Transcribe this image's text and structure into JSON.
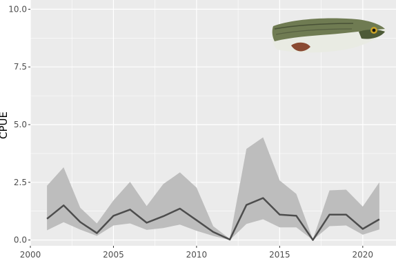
{
  "chart_data": {
    "type": "line",
    "title": "",
    "xlabel": "",
    "ylabel": "CPUE",
    "xlim": [
      2000,
      2022
    ],
    "ylim": [
      -0.25,
      10.4
    ],
    "x_ticks": [
      2000,
      2005,
      2010,
      2015,
      2020
    ],
    "y_ticks": [
      0.0,
      2.5,
      5.0,
      7.5,
      10.0
    ],
    "x_tick_labels": [
      "2000",
      "2005",
      "2010",
      "2015",
      "2020"
    ],
    "y_tick_labels": [
      "0.0",
      "2.5",
      "5.0",
      "7.5",
      "10.0"
    ],
    "grid": true,
    "legend": "none",
    "x": [
      2001,
      2002,
      2003,
      2004,
      2005,
      2006,
      2007,
      2008,
      2009,
      2010,
      2011,
      2012,
      2013,
      2014,
      2015,
      2016,
      2017,
      2018,
      2019,
      2020,
      2021
    ],
    "series": [
      {
        "values": [
          0.92,
          1.5,
          0.78,
          0.3,
          1.05,
          1.32,
          0.75,
          1.03,
          1.36,
          0.86,
          0.35,
          0.02,
          1.52,
          1.82,
          1.1,
          1.05,
          0.0,
          1.1,
          1.1,
          0.48,
          0.9
        ],
        "lower": [
          0.42,
          0.77,
          0.45,
          0.18,
          0.63,
          0.72,
          0.44,
          0.52,
          0.67,
          0.4,
          0.18,
          0.0,
          0.7,
          0.9,
          0.55,
          0.55,
          0.0,
          0.6,
          0.63,
          0.23,
          0.46
        ],
        "upper": [
          2.35,
          3.15,
          1.4,
          0.72,
          1.72,
          2.52,
          1.47,
          2.43,
          2.93,
          2.27,
          0.6,
          0.05,
          3.95,
          4.45,
          2.58,
          2.0,
          0.03,
          2.15,
          2.18,
          1.45,
          2.5
        ]
      }
    ],
    "colors": {
      "panel": "#ebebeb",
      "grid": "#ffffff",
      "line": "#4d4d4d",
      "ribbon": "#bdbdbd"
    },
    "annotation_icon": "fish-icon"
  }
}
